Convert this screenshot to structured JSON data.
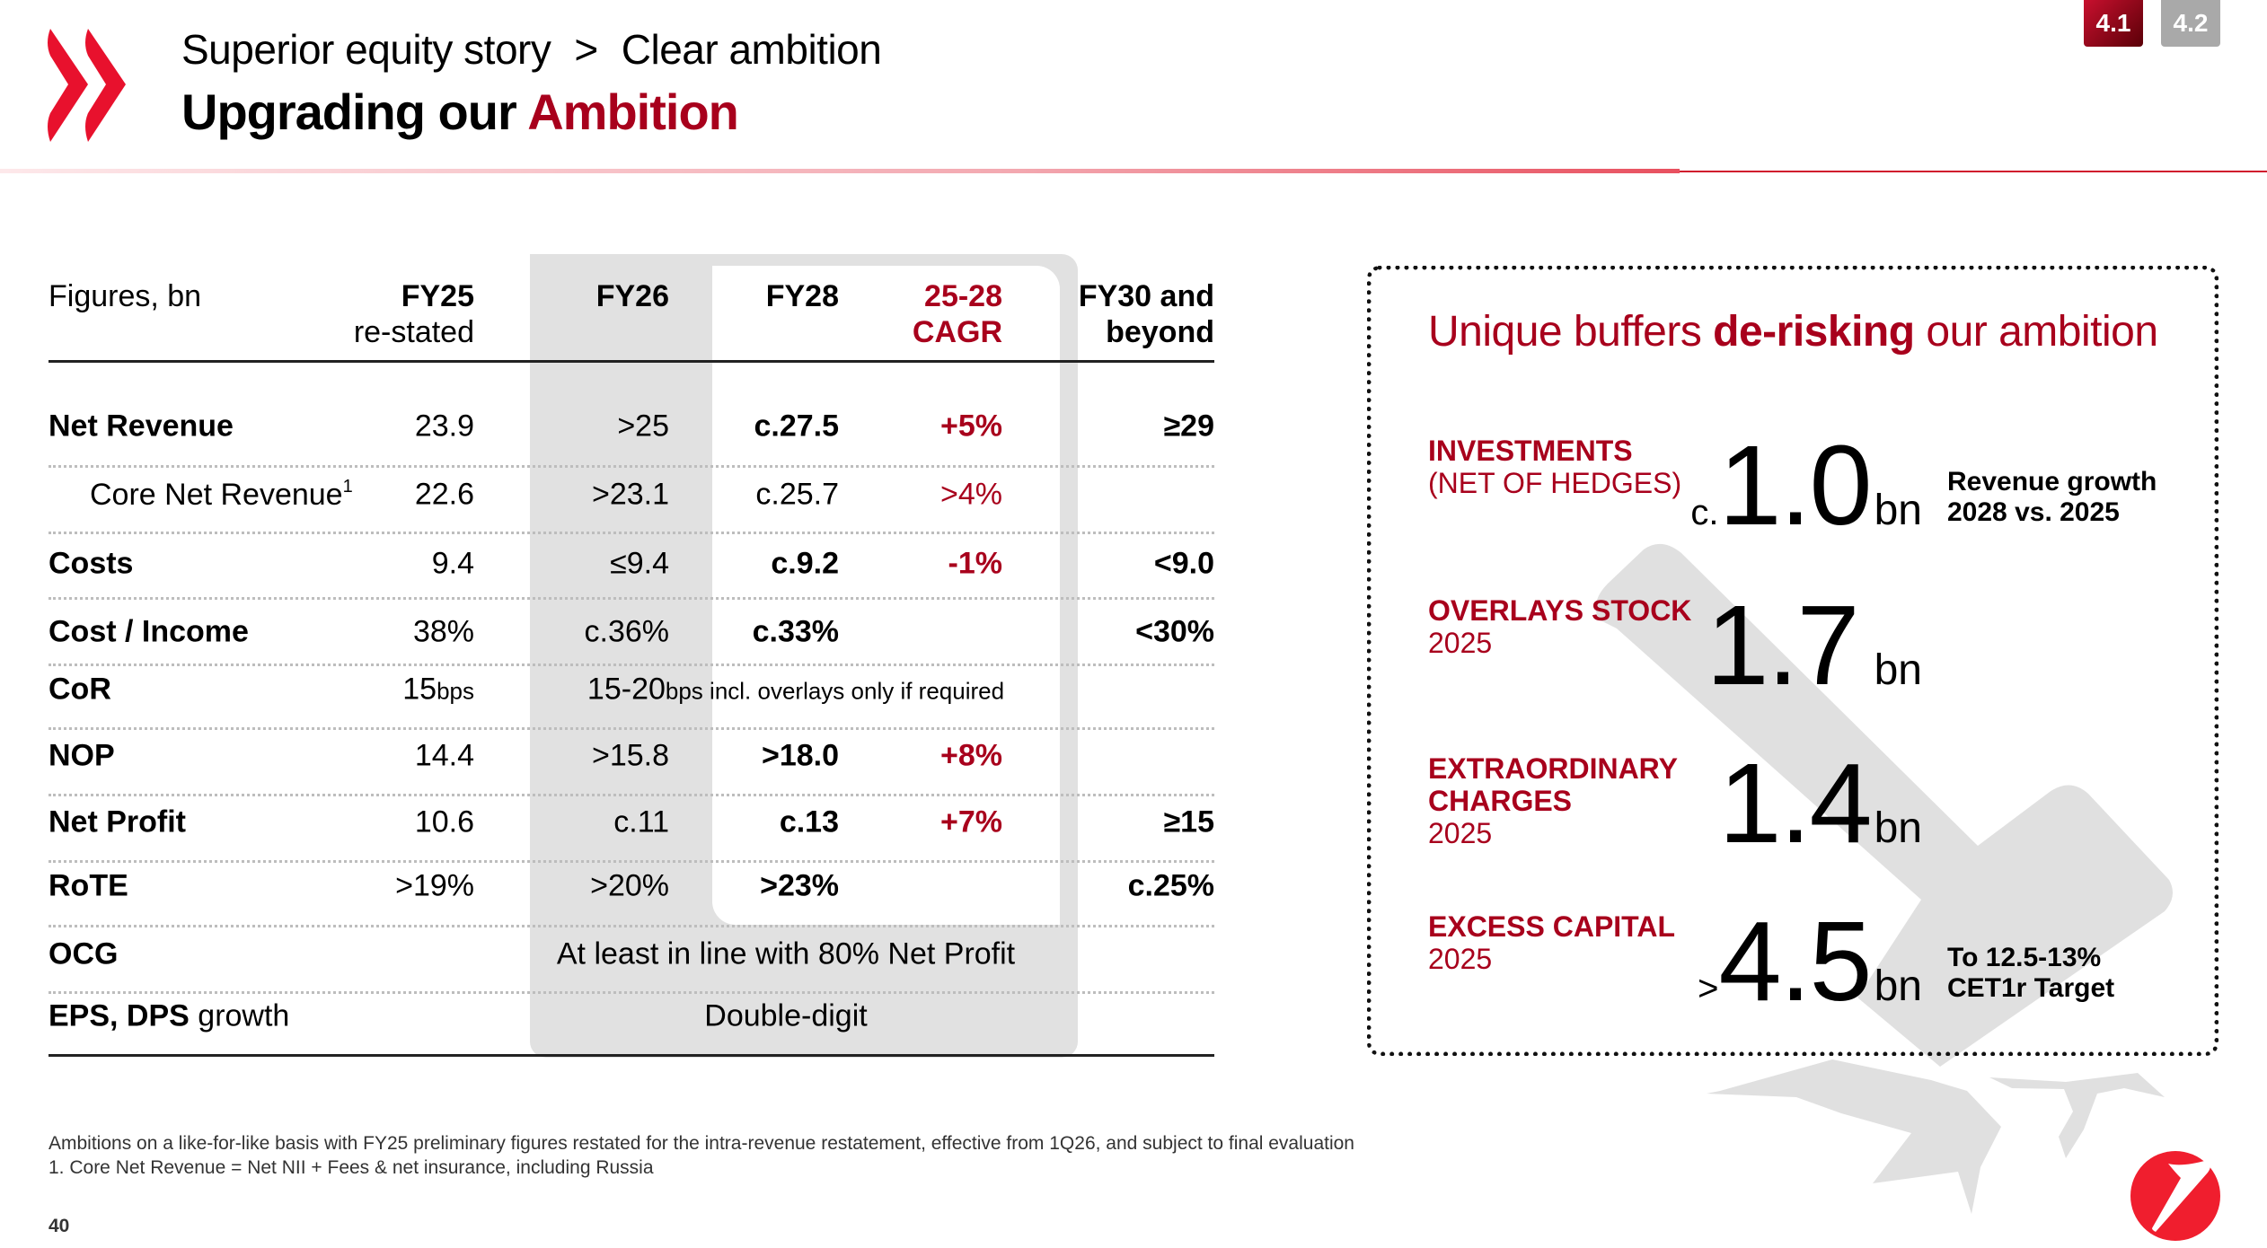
{
  "header": {
    "breadcrumb": [
      "Superior equity story",
      "Clear ambition"
    ],
    "breadcrumb_separator": ">",
    "title_prefix": "Upgrading our",
    "title_accent": "Ambition",
    "section_badges": [
      {
        "label": "4.1",
        "active": true
      },
      {
        "label": "4.2",
        "active": false
      }
    ]
  },
  "colors": {
    "brand_red": "#e8112d",
    "accent_dark_red": "#a8001c",
    "panel_gray": "#e1e1e1",
    "badge_inactive": "#a9a9a9"
  },
  "table": {
    "headers": {
      "label": "Figures, bn",
      "fy25": [
        "FY25",
        "re-stated"
      ],
      "fy26": "FY26",
      "fy28": "FY28",
      "cagr": [
        "25-28",
        "CAGR"
      ],
      "fy30": [
        "FY30 and",
        "beyond"
      ]
    },
    "rows": [
      {
        "label": "Net Revenue",
        "fy25": "23.9",
        "fy26": ">25",
        "fy28": "c.27.5",
        "cagr": "+5%",
        "fy30": "≥29"
      },
      {
        "label": "Core Net Revenue",
        "footnote_ref": "1",
        "fy25": "22.6",
        "fy26": ">23.1",
        "fy28": "c.25.7",
        "cagr": ">4%",
        "fy30": ""
      },
      {
        "label": "Costs",
        "fy25": "9.4",
        "fy26": "≤9.4",
        "fy28": "c.9.2",
        "cagr": "-1%",
        "fy30": "<9.0"
      },
      {
        "label": "Cost / Income",
        "fy25": "38%",
        "fy26": "c.36%",
        "fy28": "c.33%",
        "cagr": "",
        "fy30": "<30%"
      },
      {
        "label": "CoR",
        "fy25": "15",
        "fy25_unit": "bps",
        "span_value": "15-20",
        "span_unit": "bps",
        "span_text": " incl. overlays only if required"
      },
      {
        "label": "NOP",
        "fy25": "14.4",
        "fy26": ">15.8",
        "fy28": ">18.0",
        "cagr": "+8%",
        "fy30": ""
      },
      {
        "label": "Net Profit",
        "fy25": "10.6",
        "fy26": "c.11",
        "fy28": "c.13",
        "cagr": "+7%",
        "fy30": "≥15"
      },
      {
        "label": "RoTE",
        "fy25": ">19%",
        "fy26": ">20%",
        "fy28": ">23%",
        "cagr": "",
        "fy30": "c.25%"
      },
      {
        "label": "OCG",
        "span_text": "At least in line with 80% Net Profit"
      },
      {
        "label": "EPS, DPS",
        "label_suffix": " growth",
        "span_text": "Double-digit"
      }
    ]
  },
  "buffers": {
    "title_prefix": "Unique buffers ",
    "title_bold": "de-risking",
    "title_suffix": " our ambition",
    "items": [
      {
        "label": "INVESTMENTS",
        "sublabel": "(NET OF HEDGES)",
        "prefix": "c.",
        "value": "1.0",
        "unit": "bn",
        "note": [
          "Revenue growth",
          "2028 vs. 2025"
        ]
      },
      {
        "label": "OVERLAYS STOCK",
        "sublabel": "2025",
        "prefix": "",
        "value": "1.7",
        "unit": "bn",
        "note": []
      },
      {
        "label": "EXTRAORDINARY CHARGES",
        "label_lines": [
          "EXTRAORDINARY",
          "CHARGES"
        ],
        "sublabel": "2025",
        "prefix": "",
        "value": "1.4",
        "unit": "bn",
        "note": []
      },
      {
        "label": "EXCESS CAPITAL",
        "sublabel": "2025",
        "prefix": ">",
        "value": "4.5",
        "unit": "bn",
        "note": [
          "To 12.5-13%",
          "CET1r Target"
        ]
      }
    ]
  },
  "footer": {
    "notes": [
      "Ambitions on a like-for-like basis with FY25 preliminary figures restated for the intra-revenue restatement, effective from 1Q26, and subject to final evaluation",
      "1. Core Net Revenue = Net NII + Fees & net insurance, including Russia"
    ],
    "page_number": "40"
  }
}
